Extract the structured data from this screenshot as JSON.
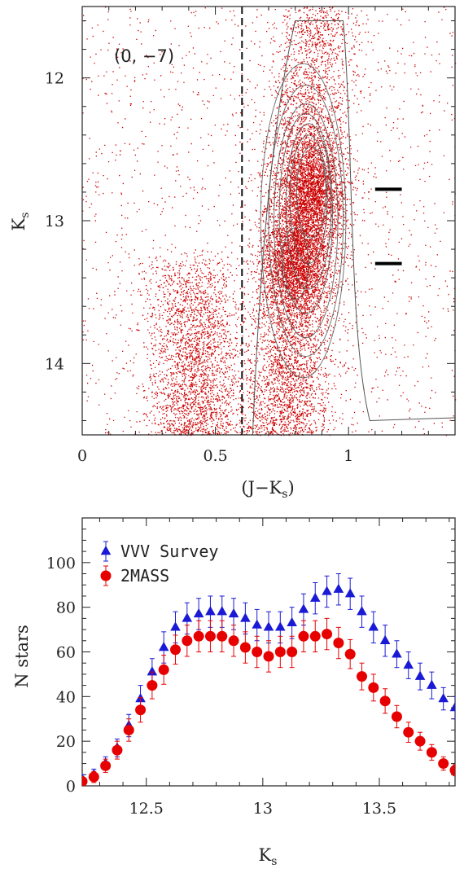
{
  "chart_data": [
    {
      "type": "scatter",
      "annotation": "(0, −7)",
      "xlabel": "(J−K",
      "xlabel_sub": "s",
      "xlabel_close": ")",
      "ylabel": "K",
      "ylabel_sub": "s",
      "xlim": [
        0,
        1.4
      ],
      "ylim": [
        14.5,
        11.5
      ],
      "xticks": [
        0,
        0.5,
        1
      ],
      "xtick_labels": [
        "0",
        "0.5",
        "1"
      ],
      "yticks": [
        12,
        13,
        14
      ],
      "ytick_labels": [
        "12",
        "13",
        "14"
      ],
      "color_cut": 0.6,
      "red_clump_markers": [
        {
          "y": 12.78,
          "x_from": 1.1,
          "x_to": 1.2
        },
        {
          "y": 13.3,
          "x_from": 1.1,
          "x_to": 1.2
        }
      ],
      "point_color": "#cc0000",
      "contour_color": "#555555",
      "density_model": {
        "background": {
          "x_range": [
            0.0,
            1.4
          ],
          "y_range": [
            11.5,
            14.5
          ]
        },
        "blue_plume": {
          "x_center": 0.42,
          "x_sigma": 0.09,
          "y_range": [
            13.2,
            14.5
          ]
        },
        "giant_branch": {
          "x_center_faint": 0.76,
          "x_center_bright": 0.88,
          "x_sigma": 0.08,
          "y_range": [
            11.5,
            14.5
          ]
        },
        "red_clump_bright": {
          "x_center": 0.86,
          "y_center": 12.78,
          "x_sigma": 0.06,
          "y_sigma": 0.18
        },
        "red_clump_faint": {
          "x_center": 0.8,
          "y_center": 13.3,
          "x_sigma": 0.06,
          "y_sigma": 0.18
        }
      }
    },
    {
      "type": "scatter",
      "xlabel": "K",
      "xlabel_sub": "s",
      "ylabel": "N stars",
      "xlim": [
        12.225,
        13.825
      ],
      "ylim": [
        0,
        120
      ],
      "xticks": [
        12.5,
        13,
        13.5
      ],
      "xtick_labels": [
        "12.5",
        "13",
        "13.5"
      ],
      "yticks": [
        0,
        20,
        40,
        60,
        80,
        100
      ],
      "ytick_labels": [
        "0",
        "20",
        "40",
        "60",
        "80",
        "100"
      ],
      "legend_position": "top-left",
      "x": [
        12.225,
        12.275,
        12.325,
        12.375,
        12.425,
        12.475,
        12.525,
        12.575,
        12.625,
        12.675,
        12.725,
        12.775,
        12.825,
        12.875,
        12.925,
        12.975,
        13.025,
        13.075,
        13.125,
        13.175,
        13.225,
        13.275,
        13.325,
        13.375,
        13.425,
        13.475,
        13.525,
        13.575,
        13.625,
        13.675,
        13.725,
        13.775,
        13.825
      ],
      "series": [
        {
          "name": "VVV Survey",
          "marker": "triangle",
          "color": "#1a1ad6",
          "values": [
            3,
            5,
            10,
            17,
            27,
            39,
            51,
            62,
            71,
            75,
            77,
            78,
            78,
            77,
            75,
            72,
            71,
            71,
            73,
            79,
            84,
            87,
            88,
            86,
            78,
            71,
            65,
            59,
            54,
            49,
            45,
            39,
            35
          ],
          "errors": [
            2,
            2.5,
            3,
            4,
            5,
            6,
            6,
            7,
            7,
            7,
            7,
            7,
            7,
            7,
            7,
            7,
            7,
            7,
            7,
            7,
            7,
            7,
            7,
            7,
            7,
            7,
            7,
            6,
            6,
            6,
            6,
            5,
            5
          ]
        },
        {
          "name": "2MASS",
          "marker": "circle",
          "color": "#e60000",
          "values": [
            2,
            4,
            9,
            16,
            25,
            34,
            45,
            52,
            61,
            65,
            67,
            67,
            67,
            65,
            62,
            60,
            58,
            60,
            60,
            67,
            67,
            68,
            64,
            59,
            49,
            44,
            38,
            31,
            24,
            20,
            15,
            10,
            7
          ],
          "errors": [
            2,
            2.5,
            3,
            4,
            5,
            5.5,
            6,
            6.5,
            6.5,
            7,
            7,
            7,
            7,
            7,
            7,
            7,
            7,
            7,
            7,
            7,
            7,
            7,
            7,
            6.5,
            6,
            6,
            5.5,
            5,
            4.5,
            4,
            3.5,
            3,
            2.5
          ]
        }
      ]
    }
  ]
}
